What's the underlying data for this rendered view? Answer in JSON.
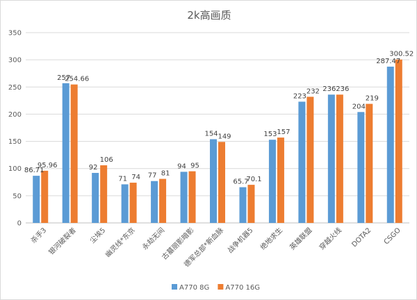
{
  "chart_data": {
    "type": "bar",
    "title": "2k高画质",
    "categories": [
      "杀手3",
      "银河破裂者",
      "尘埃5",
      "幽灵线*东京",
      "永劫无间",
      "古墓丽影暗影",
      "德军总部*新血脉",
      "战争机器5",
      "绝地求生",
      "英雄联盟",
      "穿越火线",
      "DOTA2",
      "CSGO"
    ],
    "series": [
      {
        "name": "A770 8G",
        "color": "#5b9bd5",
        "values": [
          86.71,
          257,
          92,
          71,
          77,
          94,
          154,
          65.7,
          153,
          223,
          236,
          204,
          287.47
        ]
      },
      {
        "name": "A770 16G",
        "color": "#ed7d31",
        "values": [
          95.96,
          254.66,
          106,
          74,
          81,
          95,
          149,
          70.1,
          157,
          232,
          236,
          219,
          300.52
        ]
      }
    ],
    "ylim": [
      0,
      350
    ],
    "yticks": [
      0,
      50,
      100,
      150,
      200,
      250,
      300,
      350
    ],
    "grid": true,
    "legend_position": "bottom",
    "xlabel": "",
    "ylabel": ""
  }
}
